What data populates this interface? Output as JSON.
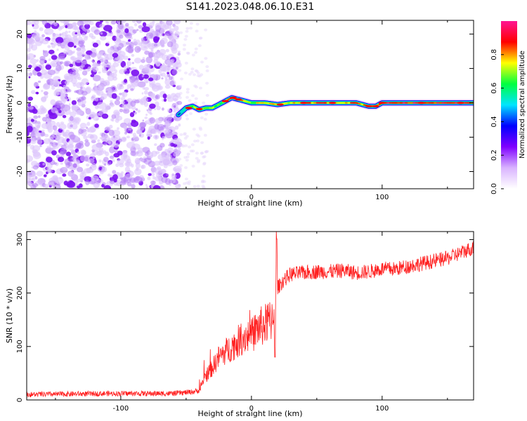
{
  "title": "S141.2023.048.06.10.E31",
  "chart_data": [
    {
      "type": "heatmap",
      "xlabel": "Height of straight line (km)",
      "ylabel": "Frequency (Hz)",
      "xlim": [
        -172,
        170
      ],
      "ylim": [
        -25,
        24
      ],
      "x_ticks": [
        "-100",
        "0",
        "100"
      ],
      "x_tick_values": [
        -100,
        0,
        100
      ],
      "y_ticks": [
        "20",
        "10",
        "0",
        "-10",
        "-20"
      ],
      "y_tick_values": [
        20,
        10,
        0,
        -10,
        -20
      ],
      "colorbar": {
        "label": "Normalized spectral amplitude",
        "range": [
          0,
          1
        ],
        "ticks": [
          "0.0",
          "0.2",
          "0.4",
          "0.6",
          "0.8"
        ],
        "tick_values": [
          0.0,
          0.2,
          0.4,
          0.6,
          0.8
        ],
        "colors": [
          "#ffffff",
          "#d9b3ff",
          "#7f00ff",
          "#0000ff",
          "#00e5ff",
          "#00ff40",
          "#ffff00",
          "#ff0000",
          "#ff1493"
        ]
      },
      "noise_region_x": [
        -172,
        -55
      ],
      "ridge": {
        "x": [
          -56,
          -50,
          -45,
          -40,
          -35,
          -30,
          -25,
          -20,
          -15,
          -10,
          -5,
          0,
          10,
          20,
          30,
          40,
          50,
          60,
          70,
          80,
          85,
          90,
          95,
          100,
          110,
          120,
          130,
          140,
          150,
          160,
          170
        ],
        "freq": [
          -3.5,
          -1.5,
          -1,
          -2,
          -1.5,
          -1.5,
          -0.5,
          0.5,
          1.5,
          1,
          0.5,
          0,
          0,
          -0.5,
          0,
          0,
          0,
          0,
          0,
          0,
          -0.5,
          -1,
          -1,
          0,
          0,
          0,
          0,
          0,
          0,
          0,
          0
        ],
        "amplitude": [
          0.4,
          0.5,
          0.7,
          0.8,
          0.6,
          0.7,
          0.6,
          0.8,
          0.9,
          0.85,
          0.8,
          0.7,
          0.75,
          0.8,
          0.75,
          0.8,
          0.85,
          0.85,
          0.8,
          0.85,
          0.8,
          0.9,
          0.85,
          0.9,
          0.9,
          0.9,
          0.9,
          0.9,
          0.95,
          0.9,
          0.9
        ]
      }
    },
    {
      "type": "line",
      "xlabel": "Height of straight line (km)",
      "ylabel": "SNR (10 * v/v)",
      "xlim": [
        -172,
        170
      ],
      "ylim": [
        0,
        315
      ],
      "x_ticks": [
        "-100",
        "0",
        "100"
      ],
      "x_tick_values": [
        -100,
        0,
        100
      ],
      "y_ticks": [
        "0",
        "100",
        "200",
        "300"
      ],
      "y_tick_values": [
        0,
        100,
        200,
        300
      ],
      "color": "#ff2020",
      "series": [
        {
          "x": [
            -172,
            -140,
            -110,
            -80,
            -60,
            -45,
            -40,
            -38,
            -35,
            -30,
            -25,
            -20,
            -15,
            -10,
            -5,
            0,
            5,
            10,
            15,
            17,
            18,
            19,
            20,
            25,
            30,
            40,
            50,
            60,
            70,
            80,
            90,
            100,
            110,
            120,
            130,
            140,
            150,
            160,
            170
          ],
          "values": [
            10,
            11,
            12,
            12,
            12,
            15,
            18,
            30,
            45,
            60,
            80,
            90,
            100,
            110,
            120,
            120,
            135,
            140,
            150,
            170,
            130,
            200,
            210,
            225,
            235,
            238,
            240,
            240,
            242,
            238,
            240,
            245,
            245,
            250,
            255,
            260,
            265,
            275,
            285
          ]
        }
      ]
    }
  ]
}
